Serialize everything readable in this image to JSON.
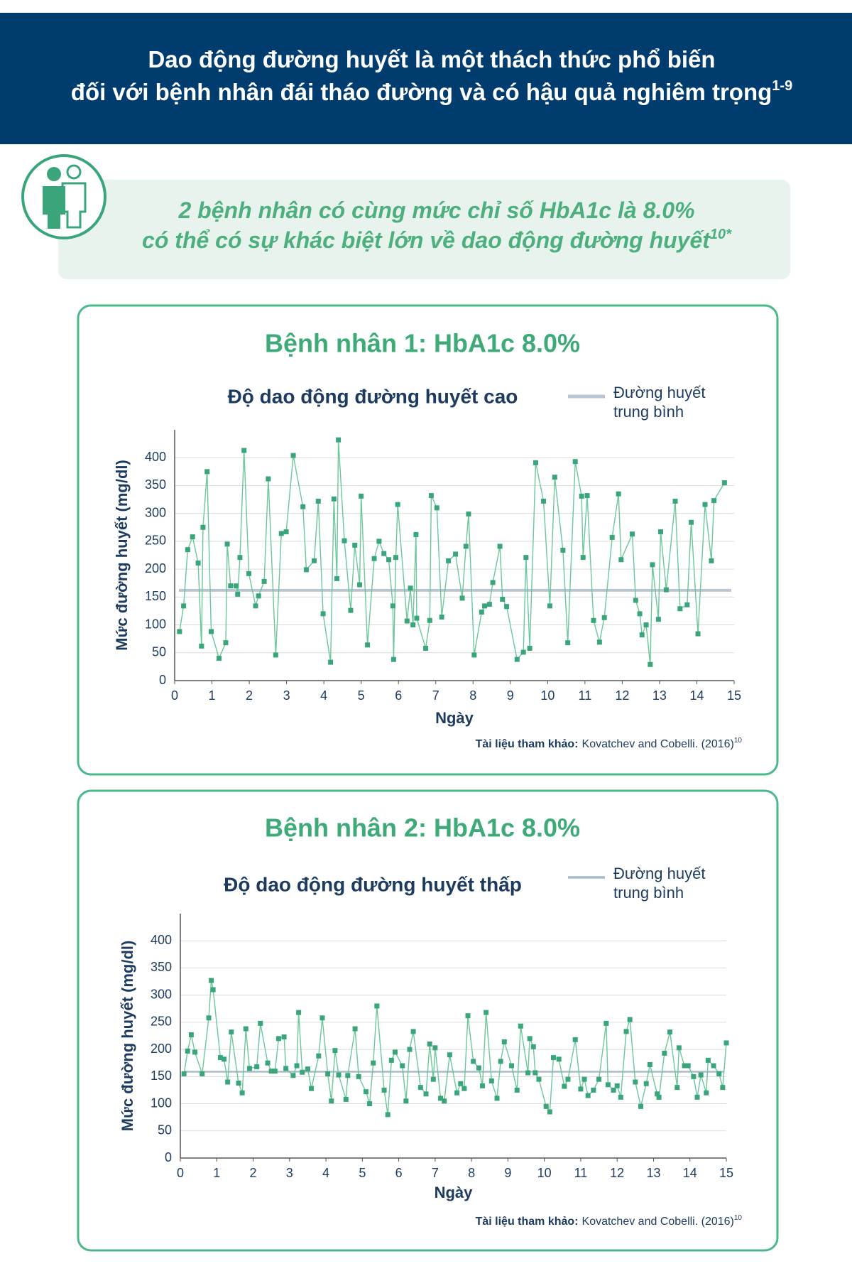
{
  "header": {
    "title_lines": [
      "Dao động đường huyết là một thách thức phổ biến",
      "đối với bệnh nhân đái tháo đường và có hậu quả nghiêm trọng"
    ],
    "title_sup": "1-9"
  },
  "callout": {
    "lines": [
      "2 bệnh nhân có cùng mức chỉ số HbA1c là 8.0%",
      "có thể có sự khác biệt lớn về dao động đường huyết"
    ],
    "sup": "10*"
  },
  "chart_data": [
    {
      "type": "line",
      "title": "Bệnh nhân 1: HbA1c 8.0%",
      "subtitle": "Độ dao động đường huyết cao",
      "ylabel": "Mức đường huyết (mg/dl)",
      "xlabel": "Ngày",
      "x": [
        0.13,
        0.24,
        0.35,
        0.48,
        0.63,
        0.72,
        0.76,
        0.87,
        0.98,
        1.19,
        1.37,
        1.41,
        1.5,
        1.65,
        1.69,
        1.75,
        1.86,
        1.99,
        2.17,
        2.25,
        2.4,
        2.51,
        2.71,
        2.86,
        2.99,
        3.18,
        3.44,
        3.53,
        3.74,
        3.85,
        3.98,
        4.18,
        4.27,
        4.35,
        4.39,
        4.55,
        4.72,
        4.83,
        4.96,
        5.0,
        5.17,
        5.35,
        5.48,
        5.61,
        5.74,
        5.85,
        5.87,
        5.93,
        5.98,
        6.23,
        6.32,
        6.39,
        6.47,
        6.49,
        6.73,
        6.84,
        6.88,
        7.03,
        7.16,
        7.34,
        7.53,
        7.71,
        7.81,
        7.88,
        8.03,
        8.23,
        8.31,
        8.44,
        8.53,
        8.72,
        8.79,
        8.9,
        9.18,
        9.35,
        9.42,
        9.52,
        9.68,
        9.89,
        10.06,
        10.19,
        10.41,
        10.54,
        10.74,
        10.91,
        10.95,
        11.06,
        11.23,
        11.39,
        11.52,
        11.73,
        11.9,
        11.97,
        12.27,
        12.36,
        12.47,
        12.53,
        12.64,
        12.75,
        12.81,
        12.97,
        13.03,
        13.18,
        13.42,
        13.55,
        13.74,
        13.85,
        14.03,
        14.22,
        14.39,
        14.46,
        14.74
      ],
      "values": [
        88,
        134,
        235,
        258,
        211,
        62,
        275,
        375,
        88,
        40,
        68,
        245,
        170,
        170,
        155,
        221,
        413,
        192,
        134,
        152,
        178,
        362,
        46,
        264,
        267,
        404,
        312,
        199,
        215,
        322,
        120,
        33,
        326,
        183,
        432,
        251,
        126,
        243,
        172,
        331,
        64,
        219,
        250,
        228,
        217,
        134,
        38,
        221,
        316,
        107,
        166,
        100,
        262,
        112,
        58,
        108,
        332,
        310,
        114,
        215,
        227,
        148,
        241,
        299,
        46,
        123,
        134,
        137,
        176,
        241,
        146,
        133,
        38,
        51,
        221,
        58,
        391,
        322,
        134,
        365,
        234,
        68,
        393,
        331,
        221,
        332,
        108,
        69,
        113,
        257,
        335,
        217,
        263,
        144,
        120,
        82,
        100,
        29,
        208,
        110,
        267,
        163,
        322,
        129,
        136,
        284,
        84,
        316,
        215,
        323,
        355
      ],
      "color": "#3aa57a",
      "line_color": "#6cc79a",
      "mean_line": {
        "name": "Đường huyết trung bình",
        "value": 162,
        "color": "#b9c6d2"
      },
      "xlim": [
        0,
        15
      ],
      "ylim": [
        0,
        450
      ],
      "xticks": [
        0,
        1,
        2,
        3,
        4,
        5,
        6,
        7,
        8,
        9,
        10,
        11,
        12,
        13,
        14,
        15
      ],
      "yticks": [
        0,
        50,
        100,
        150,
        200,
        250,
        300,
        350,
        400
      ],
      "grid": true,
      "reference": {
        "label": "Tài liệu tham khảo:",
        "text": "Kovatchev and Cobelli. (2016)",
        "sup": "10"
      }
    },
    {
      "type": "line",
      "title": "Bệnh nhân 2: HbA1c 8.0%",
      "subtitle": "Độ dao động đường huyết thấp",
      "ylabel": "Mức đường huyết (mg/dl)",
      "xlabel": "Ngày",
      "x": [
        0.1,
        0.2,
        0.3,
        0.4,
        0.6,
        0.78,
        0.85,
        0.9,
        1.1,
        1.2,
        1.3,
        1.4,
        1.6,
        1.7,
        1.8,
        1.9,
        2.1,
        2.2,
        2.4,
        2.5,
        2.6,
        2.7,
        2.85,
        2.9,
        3.1,
        3.2,
        3.25,
        3.35,
        3.5,
        3.6,
        3.8,
        3.9,
        4.05,
        4.15,
        4.25,
        4.35,
        4.55,
        4.6,
        4.8,
        4.9,
        5.1,
        5.2,
        5.3,
        5.4,
        5.6,
        5.7,
        5.8,
        5.9,
        6.1,
        6.2,
        6.3,
        6.4,
        6.6,
        6.75,
        6.85,
        6.95,
        7.0,
        7.15,
        7.25,
        7.4,
        7.6,
        7.7,
        7.8,
        7.9,
        8.05,
        8.2,
        8.3,
        8.4,
        8.55,
        8.7,
        8.8,
        8.9,
        9.1,
        9.25,
        9.35,
        9.55,
        9.6,
        9.7,
        9.75,
        9.85,
        10.05,
        10.15,
        10.25,
        10.4,
        10.55,
        10.65,
        10.85,
        11.0,
        11.1,
        11.2,
        11.35,
        11.5,
        11.7,
        11.75,
        11.9,
        12.0,
        12.1,
        12.25,
        12.35,
        12.5,
        12.65,
        12.8,
        12.9,
        13.1,
        13.15,
        13.3,
        13.45,
        13.65,
        13.7,
        13.85,
        13.95,
        14.1,
        14.2,
        14.3,
        14.45,
        14.5,
        14.65,
        14.8,
        14.9,
        15.0
      ],
      "values": [
        155,
        197,
        227,
        195,
        155,
        258,
        327,
        310,
        185,
        182,
        140,
        232,
        138,
        120,
        238,
        165,
        168,
        248,
        175,
        160,
        160,
        220,
        223,
        165,
        152,
        170,
        268,
        158,
        164,
        128,
        188,
        258,
        155,
        105,
        198,
        153,
        108,
        152,
        238,
        150,
        122,
        100,
        175,
        280,
        125,
        80,
        180,
        195,
        170,
        105,
        200,
        233,
        130,
        118,
        210,
        145,
        203,
        110,
        105,
        190,
        120,
        137,
        128,
        262,
        178,
        166,
        133,
        268,
        142,
        110,
        178,
        214,
        170,
        125,
        243,
        157,
        220,
        205,
        157,
        145,
        95,
        85,
        185,
        182,
        132,
        145,
        218,
        127,
        145,
        115,
        125,
        145,
        248,
        135,
        125,
        133,
        112,
        233,
        255,
        140,
        95,
        137,
        172,
        118,
        112,
        193,
        232,
        130,
        203,
        170,
        170,
        150,
        112,
        153,
        120,
        180,
        170,
        155,
        130,
        212
      ],
      "color": "#3aa57a",
      "line_color": "#6cc79a",
      "mean_line": {
        "name": "Đường huyết trung bình",
        "value": 159,
        "color": "#a9bccb"
      },
      "xlim": [
        0,
        15
      ],
      "ylim": [
        0,
        450
      ],
      "xticks": [
        0,
        1,
        2,
        3,
        4,
        5,
        6,
        7,
        8,
        9,
        10,
        11,
        12,
        13,
        14,
        15
      ],
      "yticks": [
        0,
        50,
        100,
        150,
        200,
        250,
        300,
        350,
        400
      ],
      "grid": true,
      "reference": {
        "label": "Tài liệu tham khảo:",
        "text": "Kovatchev and Cobelli. (2016)",
        "sup": "10"
      }
    }
  ]
}
